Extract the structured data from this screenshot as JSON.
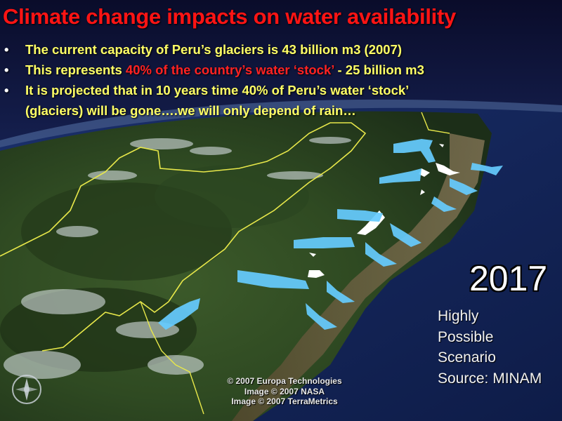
{
  "title": "Climate change impacts on water availability",
  "bullets": [
    {
      "text": "The current capacity of Peru’s glaciers is 43 billion m3 (2007)"
    },
    {
      "pre": "This represents ",
      "highlight": "40% of the country’s water ‘stock’",
      "post": " - 25 billion m3"
    },
    {
      "line1": "It is projected that in 10 years time 40% of Peru’s water ‘stock’",
      "line2": "(glaciers) will be gone….we will only depend of rain…"
    }
  ],
  "year": "2017",
  "scenario": {
    "line1": "Highly",
    "line2": "Possible",
    "line3": "Scenario",
    "source": "Source: MINAM"
  },
  "credits": [
    "© 2007 Europa Technologies",
    "Image © 2007 NASA",
    "Image © 2007 TerraMetrics"
  ],
  "colors": {
    "title": "#ff1414",
    "bullet_text": "#ffff66",
    "highlight": "#ff2222",
    "arrows": "#66ccff",
    "border": "#e8e84a",
    "glacier": "#ffffff"
  },
  "icons": {
    "bullet": "•",
    "compass": "compass-rose-icon"
  }
}
